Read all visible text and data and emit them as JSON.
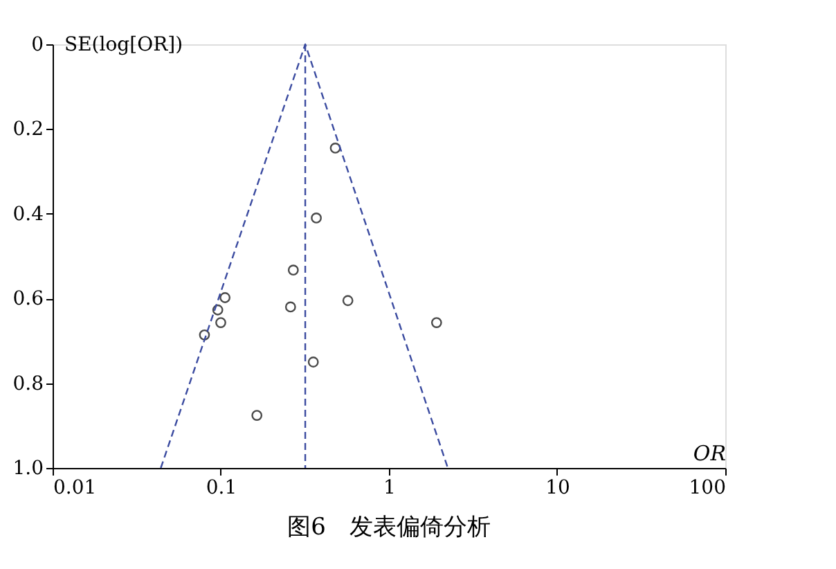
{
  "chart_data": {
    "type": "scatter",
    "title": "图6　发表偏倚分析",
    "xlabel": "OR",
    "ylabel": "SE(log[OR])",
    "log": "x",
    "xlim": [
      0.01,
      100
    ],
    "xticks": [
      0.01,
      0.1,
      1,
      10,
      100
    ],
    "ylim": [
      1.0,
      0
    ],
    "yticks": [
      0,
      0.2,
      0.4,
      0.6,
      0.8,
      {
        "value": 1.0,
        "label": "1.0"
      }
    ],
    "grid": false,
    "series": [
      {
        "color": "#000000",
        "marker": "circle",
        "x": [
          0.48,
          0.37,
          0.27,
          0.106,
          0.57,
          0.096,
          0.26,
          1.92,
          0.1,
          0.08,
          0.355,
          0.164
        ],
        "values": [
          0.245,
          0.41,
          0.533,
          0.598,
          0.605,
          0.627,
          0.62,
          0.657,
          0.657,
          0.686,
          0.75,
          0.876
        ]
      },
      {
        "type": "line",
        "color": "#3b4ba0",
        "line_style": "dashed",
        "marker": "none",
        "x": [
          0.044,
          0.318,
          2.24
        ],
        "values": [
          1.0,
          0,
          1.0
        ]
      }
    ],
    "ref_lines": [
      {
        "axis": "x",
        "value": 0.318,
        "color": "#3b4ba0",
        "line_style": "dashed"
      }
    ]
  }
}
